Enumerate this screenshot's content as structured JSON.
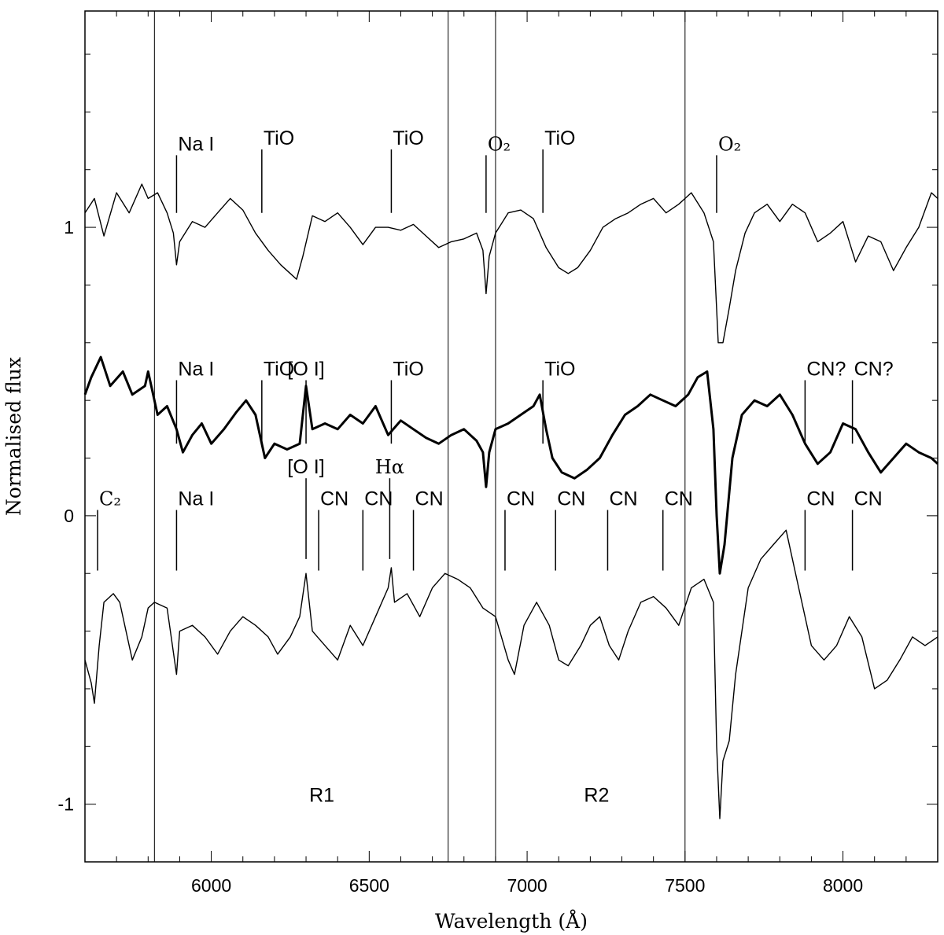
{
  "chart_data": {
    "type": "line",
    "title": "",
    "xlabel": "Wavelength (Å)",
    "ylabel": "Normalised flux",
    "xlim": [
      5600,
      8300
    ],
    "ylim": [
      -1.2,
      1.75
    ],
    "x_ticks": [
      {
        "value": 6000,
        "label": "6000"
      },
      {
        "value": 6500,
        "label": "6500"
      },
      {
        "value": 7000,
        "label": "7000"
      },
      {
        "value": 7500,
        "label": "7500"
      },
      {
        "value": 8000,
        "label": "8000"
      }
    ],
    "y_ticks": [
      {
        "value": 1,
        "label": "1"
      },
      {
        "value": 0,
        "label": "0"
      },
      {
        "value": -1,
        "label": "-1"
      }
    ],
    "grid": false,
    "legend": "none",
    "region_lines": [
      5820,
      6750,
      6900,
      7500
    ],
    "region_labels": [
      {
        "text": "R1",
        "x": 6350,
        "y": -0.97
      },
      {
        "text": "R2",
        "x": 7220,
        "y": -0.97
      }
    ],
    "series": [
      {
        "style": "thin",
        "points": [
          [
            5600,
            1.05
          ],
          [
            5630,
            1.1
          ],
          [
            5660,
            0.97
          ],
          [
            5700,
            1.12
          ],
          [
            5740,
            1.05
          ],
          [
            5780,
            1.15
          ],
          [
            5800,
            1.1
          ],
          [
            5830,
            1.12
          ],
          [
            5860,
            1.05
          ],
          [
            5880,
            0.98
          ],
          [
            5890,
            0.87
          ],
          [
            5900,
            0.95
          ],
          [
            5940,
            1.02
          ],
          [
            5980,
            1.0
          ],
          [
            6020,
            1.05
          ],
          [
            6060,
            1.1
          ],
          [
            6100,
            1.06
          ],
          [
            6140,
            0.98
          ],
          [
            6180,
            0.92
          ],
          [
            6220,
            0.87
          ],
          [
            6250,
            0.84
          ],
          [
            6270,
            0.82
          ],
          [
            6290,
            0.9
          ],
          [
            6320,
            1.04
          ],
          [
            6360,
            1.02
          ],
          [
            6400,
            1.05
          ],
          [
            6440,
            1.0
          ],
          [
            6480,
            0.94
          ],
          [
            6520,
            1.0
          ],
          [
            6560,
            1.0
          ],
          [
            6600,
            0.99
          ],
          [
            6640,
            1.01
          ],
          [
            6680,
            0.97
          ],
          [
            6720,
            0.93
          ],
          [
            6760,
            0.95
          ],
          [
            6800,
            0.96
          ],
          [
            6840,
            0.98
          ],
          [
            6860,
            0.92
          ],
          [
            6870,
            0.77
          ],
          [
            6880,
            0.9
          ],
          [
            6900,
            0.98
          ],
          [
            6940,
            1.05
          ],
          [
            6980,
            1.06
          ],
          [
            7020,
            1.03
          ],
          [
            7060,
            0.93
          ],
          [
            7100,
            0.86
          ],
          [
            7130,
            0.84
          ],
          [
            7160,
            0.86
          ],
          [
            7200,
            0.92
          ],
          [
            7240,
            1.0
          ],
          [
            7280,
            1.03
          ],
          [
            7320,
            1.05
          ],
          [
            7360,
            1.08
          ],
          [
            7400,
            1.1
          ],
          [
            7440,
            1.05
          ],
          [
            7480,
            1.08
          ],
          [
            7520,
            1.12
          ],
          [
            7560,
            1.05
          ],
          [
            7590,
            0.95
          ],
          [
            7605,
            0.6
          ],
          [
            7620,
            0.6
          ],
          [
            7640,
            0.72
          ],
          [
            7660,
            0.85
          ],
          [
            7690,
            0.98
          ],
          [
            7720,
            1.05
          ],
          [
            7760,
            1.08
          ],
          [
            7800,
            1.02
          ],
          [
            7840,
            1.08
          ],
          [
            7880,
            1.05
          ],
          [
            7920,
            0.95
          ],
          [
            7960,
            0.98
          ],
          [
            8000,
            1.02
          ],
          [
            8040,
            0.88
          ],
          [
            8080,
            0.97
          ],
          [
            8120,
            0.95
          ],
          [
            8160,
            0.85
          ],
          [
            8200,
            0.93
          ],
          [
            8240,
            1.0
          ],
          [
            8280,
            1.12
          ],
          [
            8300,
            1.1
          ]
        ],
        "annotations": [
          {
            "text": "Na I",
            "x": 5890,
            "top": 1.05,
            "bottom": 1.25
          },
          {
            "text": "TiO",
            "x": 6160,
            "top": 1.05,
            "bottom": 1.27
          },
          {
            "text": "TiO",
            "x": 6570,
            "top": 1.05,
            "bottom": 1.27
          },
          {
            "text": "O₂",
            "x": 6870,
            "top": 1.05,
            "bottom": 1.25
          },
          {
            "text": "TiO",
            "x": 7050,
            "top": 1.05,
            "bottom": 1.27
          },
          {
            "text": "O₂",
            "x": 7600,
            "top": 1.05,
            "bottom": 1.25
          }
        ]
      },
      {
        "style": "thick",
        "points": [
          [
            5600,
            0.42
          ],
          [
            5620,
            0.48
          ],
          [
            5650,
            0.55
          ],
          [
            5680,
            0.45
          ],
          [
            5720,
            0.5
          ],
          [
            5750,
            0.42
          ],
          [
            5790,
            0.45
          ],
          [
            5800,
            0.5
          ],
          [
            5830,
            0.35
          ],
          [
            5860,
            0.38
          ],
          [
            5890,
            0.3
          ],
          [
            5910,
            0.22
          ],
          [
            5940,
            0.28
          ],
          [
            5970,
            0.32
          ],
          [
            6000,
            0.25
          ],
          [
            6040,
            0.3
          ],
          [
            6080,
            0.36
          ],
          [
            6110,
            0.4
          ],
          [
            6140,
            0.35
          ],
          [
            6170,
            0.2
          ],
          [
            6200,
            0.25
          ],
          [
            6240,
            0.23
          ],
          [
            6280,
            0.25
          ],
          [
            6300,
            0.45
          ],
          [
            6320,
            0.3
          ],
          [
            6360,
            0.32
          ],
          [
            6400,
            0.3
          ],
          [
            6440,
            0.35
          ],
          [
            6480,
            0.32
          ],
          [
            6520,
            0.38
          ],
          [
            6560,
            0.28
          ],
          [
            6600,
            0.33
          ],
          [
            6640,
            0.3
          ],
          [
            6680,
            0.27
          ],
          [
            6720,
            0.25
          ],
          [
            6760,
            0.28
          ],
          [
            6800,
            0.3
          ],
          [
            6840,
            0.26
          ],
          [
            6860,
            0.22
          ],
          [
            6870,
            0.1
          ],
          [
            6880,
            0.22
          ],
          [
            6900,
            0.3
          ],
          [
            6940,
            0.32
          ],
          [
            6980,
            0.35
          ],
          [
            7020,
            0.38
          ],
          [
            7040,
            0.42
          ],
          [
            7060,
            0.3
          ],
          [
            7080,
            0.2
          ],
          [
            7110,
            0.15
          ],
          [
            7150,
            0.13
          ],
          [
            7190,
            0.16
          ],
          [
            7230,
            0.2
          ],
          [
            7270,
            0.28
          ],
          [
            7310,
            0.35
          ],
          [
            7350,
            0.38
          ],
          [
            7390,
            0.42
          ],
          [
            7430,
            0.4
          ],
          [
            7470,
            0.38
          ],
          [
            7510,
            0.42
          ],
          [
            7540,
            0.48
          ],
          [
            7570,
            0.5
          ],
          [
            7590,
            0.3
          ],
          [
            7600,
            0.0
          ],
          [
            7610,
            -0.2
          ],
          [
            7625,
            -0.1
          ],
          [
            7650,
            0.2
          ],
          [
            7680,
            0.35
          ],
          [
            7720,
            0.4
          ],
          [
            7760,
            0.38
          ],
          [
            7800,
            0.42
          ],
          [
            7840,
            0.35
          ],
          [
            7880,
            0.25
          ],
          [
            7920,
            0.18
          ],
          [
            7960,
            0.22
          ],
          [
            8000,
            0.32
          ],
          [
            8040,
            0.3
          ],
          [
            8080,
            0.22
          ],
          [
            8120,
            0.15
          ],
          [
            8160,
            0.2
          ],
          [
            8200,
            0.25
          ],
          [
            8240,
            0.22
          ],
          [
            8280,
            0.2
          ],
          [
            8300,
            0.18
          ]
        ],
        "annotations": [
          {
            "text": "Na I",
            "x": 5890,
            "top": 0.25,
            "bottom": 0.47
          },
          {
            "text": "TiO",
            "x": 6160,
            "top": 0.25,
            "bottom": 0.47
          },
          {
            "text": "[O I]",
            "x": 6300,
            "top": 0.25,
            "bottom": 0.47
          },
          {
            "text": "TiO",
            "x": 6570,
            "top": 0.25,
            "bottom": 0.47
          },
          {
            "text": "TiO",
            "x": 7050,
            "top": 0.25,
            "bottom": 0.47
          },
          {
            "text": "CN?",
            "x": 7880,
            "top": 0.25,
            "bottom": 0.47
          },
          {
            "text": "CN?",
            "x": 8030,
            "top": 0.25,
            "bottom": 0.47
          }
        ]
      },
      {
        "style": "thin",
        "points": [
          [
            5600,
            -0.5
          ],
          [
            5620,
            -0.58
          ],
          [
            5630,
            -0.65
          ],
          [
            5645,
            -0.45
          ],
          [
            5660,
            -0.3
          ],
          [
            5690,
            -0.27
          ],
          [
            5710,
            -0.3
          ],
          [
            5730,
            -0.4
          ],
          [
            5750,
            -0.5
          ],
          [
            5780,
            -0.42
          ],
          [
            5800,
            -0.32
          ],
          [
            5820,
            -0.3
          ],
          [
            5860,
            -0.32
          ],
          [
            5890,
            -0.55
          ],
          [
            5900,
            -0.4
          ],
          [
            5940,
            -0.38
          ],
          [
            5980,
            -0.42
          ],
          [
            6020,
            -0.48
          ],
          [
            6060,
            -0.4
          ],
          [
            6100,
            -0.35
          ],
          [
            6140,
            -0.38
          ],
          [
            6180,
            -0.42
          ],
          [
            6210,
            -0.48
          ],
          [
            6250,
            -0.42
          ],
          [
            6280,
            -0.35
          ],
          [
            6300,
            -0.2
          ],
          [
            6320,
            -0.4
          ],
          [
            6360,
            -0.45
          ],
          [
            6400,
            -0.5
          ],
          [
            6440,
            -0.38
          ],
          [
            6480,
            -0.45
          ],
          [
            6520,
            -0.35
          ],
          [
            6560,
            -0.25
          ],
          [
            6570,
            -0.18
          ],
          [
            6580,
            -0.3
          ],
          [
            6620,
            -0.27
          ],
          [
            6660,
            -0.35
          ],
          [
            6700,
            -0.25
          ],
          [
            6740,
            -0.2
          ],
          [
            6780,
            -0.22
          ],
          [
            6820,
            -0.25
          ],
          [
            6860,
            -0.32
          ],
          [
            6900,
            -0.35
          ],
          [
            6940,
            -0.5
          ],
          [
            6960,
            -0.55
          ],
          [
            6990,
            -0.38
          ],
          [
            7030,
            -0.3
          ],
          [
            7070,
            -0.38
          ],
          [
            7100,
            -0.5
          ],
          [
            7130,
            -0.52
          ],
          [
            7170,
            -0.45
          ],
          [
            7200,
            -0.38
          ],
          [
            7230,
            -0.35
          ],
          [
            7260,
            -0.45
          ],
          [
            7290,
            -0.5
          ],
          [
            7320,
            -0.4
          ],
          [
            7360,
            -0.3
          ],
          [
            7400,
            -0.28
          ],
          [
            7440,
            -0.32
          ],
          [
            7480,
            -0.38
          ],
          [
            7520,
            -0.25
          ],
          [
            7560,
            -0.22
          ],
          [
            7590,
            -0.3
          ],
          [
            7600,
            -0.8
          ],
          [
            7610,
            -1.05
          ],
          [
            7620,
            -0.85
          ],
          [
            7640,
            -0.78
          ],
          [
            7660,
            -0.55
          ],
          [
            7700,
            -0.25
          ],
          [
            7740,
            -0.15
          ],
          [
            7780,
            -0.1
          ],
          [
            7820,
            -0.05
          ],
          [
            7860,
            -0.25
          ],
          [
            7900,
            -0.45
          ],
          [
            7940,
            -0.5
          ],
          [
            7980,
            -0.45
          ],
          [
            8020,
            -0.35
          ],
          [
            8060,
            -0.42
          ],
          [
            8100,
            -0.6
          ],
          [
            8140,
            -0.57
          ],
          [
            8180,
            -0.5
          ],
          [
            8220,
            -0.42
          ],
          [
            8260,
            -0.45
          ],
          [
            8300,
            -0.42
          ]
        ],
        "annotations": [
          {
            "text": "C₂",
            "x": 5640,
            "top": -0.19,
            "bottom": 0.02
          },
          {
            "text": "Na I",
            "x": 5890,
            "top": -0.19,
            "bottom": 0.02
          },
          {
            "text": "[O I]",
            "x": 6300,
            "top": -0.15,
            "bottom": 0.13
          },
          {
            "text": "CN",
            "x": 6340,
            "top": -0.19,
            "bottom": 0.02
          },
          {
            "text": "CN",
            "x": 6480,
            "top": -0.19,
            "bottom": 0.02
          },
          {
            "text": "Hα",
            "x": 6565,
            "top": -0.15,
            "bottom": 0.13
          },
          {
            "text": "CN",
            "x": 6640,
            "top": -0.19,
            "bottom": 0.02
          },
          {
            "text": "CN",
            "x": 6930,
            "top": -0.19,
            "bottom": 0.02
          },
          {
            "text": "CN",
            "x": 7090,
            "top": -0.19,
            "bottom": 0.02
          },
          {
            "text": "CN",
            "x": 7255,
            "top": -0.19,
            "bottom": 0.02
          },
          {
            "text": "CN",
            "x": 7430,
            "top": -0.19,
            "bottom": 0.02
          },
          {
            "text": "CN",
            "x": 7880,
            "top": -0.19,
            "bottom": 0.02
          },
          {
            "text": "CN",
            "x": 8030,
            "top": -0.19,
            "bottom": 0.02
          }
        ]
      }
    ]
  }
}
